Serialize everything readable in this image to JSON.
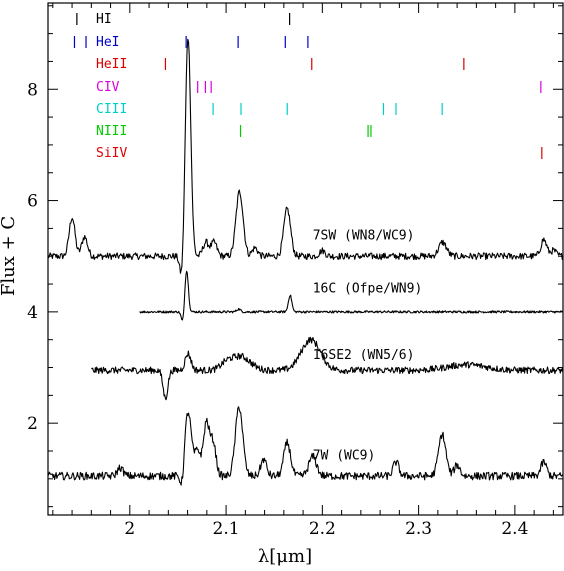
{
  "chart_data": {
    "type": "line",
    "xlabel": "λ[μm]",
    "ylabel": "Flux + C",
    "xlim": [
      1.915,
      2.45
    ],
    "ylim": [
      0.35,
      9.55
    ],
    "x_ticks": [
      "2",
      "2.1",
      "2.2",
      "2.3",
      "2.4"
    ],
    "x_tick_values": [
      2.0,
      2.1,
      2.2,
      2.3,
      2.4
    ],
    "y_ticks": [
      "2",
      "4",
      "6",
      "8"
    ],
    "y_tick_values": [
      2,
      4,
      6,
      8
    ],
    "line_identifications": [
      {
        "name": "HI",
        "color": "#000000",
        "positions": [
          1.945,
          2.166
        ]
      },
      {
        "name": "HeI",
        "color": "#0000cc",
        "positions": [
          1.9425,
          1.9545,
          2.0585,
          2.1125,
          2.1615,
          2.185
        ]
      },
      {
        "name": "HeII",
        "color": "#dd0000",
        "positions": [
          2.037,
          2.189,
          2.347
        ]
      },
      {
        "name": "CIV",
        "color": "#dd00dd",
        "positions": [
          2.0705,
          2.0785,
          2.0845,
          2.427
        ]
      },
      {
        "name": "CIII",
        "color": "#00cccc",
        "positions": [
          2.0865,
          2.1155,
          2.1635,
          2.2635,
          2.2765,
          2.3245
        ]
      },
      {
        "name": "NIII",
        "color": "#00cc00",
        "positions": [
          2.115,
          2.2475,
          2.2505
        ]
      },
      {
        "name": "SiIV",
        "color": "#dd0000",
        "positions": [
          2.428
        ]
      }
    ],
    "series": [
      {
        "name": "7SW (WN8/WC9)",
        "label_x": 2.19,
        "label_y": 5.3,
        "x_range": [
          1.915,
          2.45
        ],
        "continuum": 5.0,
        "features": [
          [
            1.94,
            0.7,
            0.003
          ],
          [
            1.953,
            0.35,
            0.003
          ],
          [
            2.0605,
            3.95,
            0.0028
          ],
          [
            2.054,
            -0.45,
            0.002
          ],
          [
            2.079,
            0.25,
            0.003
          ],
          [
            2.0875,
            0.25,
            0.003
          ],
          [
            2.1135,
            1.05,
            0.0035
          ],
          [
            2.1635,
            0.85,
            0.0035
          ],
          [
            2.117,
            0.2,
            0.003
          ],
          [
            2.13,
            0.15,
            0.003
          ],
          [
            2.2,
            0.1,
            0.003
          ],
          [
            2.325,
            0.25,
            0.004
          ],
          [
            2.43,
            0.3,
            0.003
          ],
          [
            2.44,
            0.1,
            0.003
          ]
        ],
        "noise": 0.06
      },
      {
        "name": "16C (Ofpe/WN9)",
        "label_x": 2.19,
        "label_y": 4.35,
        "x_range": [
          2.01,
          2.45
        ],
        "continuum": 4.0,
        "features": [
          [
            2.059,
            0.75,
            0.0018
          ],
          [
            2.055,
            -0.2,
            0.0015
          ],
          [
            2.1665,
            0.3,
            0.0018
          ],
          [
            2.113,
            0.05,
            0.002
          ]
        ],
        "noise": 0.02
      },
      {
        "name": "16SE2 (WN5/6)",
        "label_x": 2.19,
        "label_y": 3.15,
        "x_range": [
          1.96,
          2.45
        ],
        "continuum": 2.95,
        "features": [
          [
            2.037,
            -0.5,
            0.0025
          ],
          [
            2.0605,
            0.3,
            0.003
          ],
          [
            2.115,
            0.25,
            0.01
          ],
          [
            2.188,
            0.55,
            0.01
          ],
          [
            2.1,
            0.1,
            0.006
          ],
          [
            2.35,
            0.1,
            0.02
          ]
        ],
        "noise": 0.06
      },
      {
        "name": "7W (WC9)",
        "label_x": 2.19,
        "label_y": 1.35,
        "x_range": [
          1.915,
          2.45
        ],
        "continuum": 1.05,
        "features": [
          [
            2.0605,
            1.15,
            0.0035
          ],
          [
            2.0705,
            0.45,
            0.003
          ],
          [
            2.0795,
            0.95,
            0.003
          ],
          [
            2.0865,
            0.6,
            0.003
          ],
          [
            2.1135,
            1.25,
            0.0038
          ],
          [
            2.0545,
            -0.3,
            0.002
          ],
          [
            2.139,
            0.3,
            0.003
          ],
          [
            2.1635,
            0.6,
            0.0035
          ],
          [
            2.19,
            0.35,
            0.004
          ],
          [
            2.2765,
            0.25,
            0.003
          ],
          [
            2.3245,
            0.75,
            0.0038
          ],
          [
            2.34,
            0.2,
            0.003
          ],
          [
            2.43,
            0.25,
            0.003
          ],
          [
            1.99,
            0.15,
            0.003
          ]
        ],
        "noise": 0.07
      }
    ]
  }
}
